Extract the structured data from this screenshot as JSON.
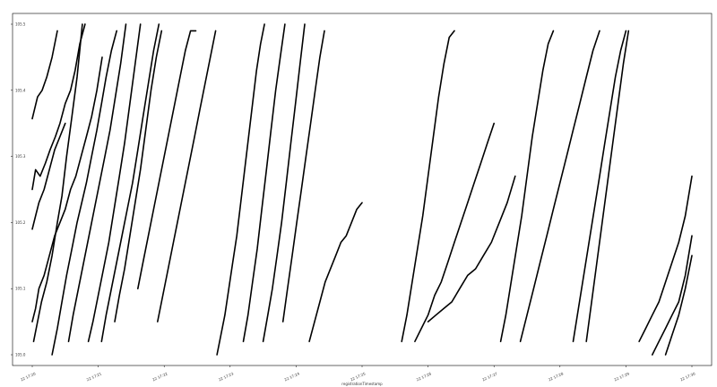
{
  "chart_data": {
    "type": "line",
    "title": "",
    "xlabel": "registrationTimestamp",
    "ylabel": "",
    "grid": false,
    "legend": "none",
    "line_color": "#000000",
    "xlim": [
      0,
      10
    ],
    "ylim": [
      105.0,
      105.5
    ],
    "x_ticks": [
      {
        "x": 0,
        "label": "22 17:20"
      },
      {
        "x": 1,
        "label": "22 17:21"
      },
      {
        "x": 2,
        "label": "22 17:22"
      },
      {
        "x": 3,
        "label": "22 17:23"
      },
      {
        "x": 4,
        "label": "22 17:24"
      },
      {
        "x": 5,
        "label": "22 17:25"
      },
      {
        "x": 6,
        "label": "22 17:26"
      },
      {
        "x": 7,
        "label": "22 17:27"
      },
      {
        "x": 8,
        "label": "22 17:28"
      },
      {
        "x": 9,
        "label": "22 17:29"
      },
      {
        "x": 10,
        "label": "22 17:30"
      }
    ],
    "y_ticks": [
      {
        "y": 105.0,
        "label": "105.0"
      },
      {
        "y": 105.1,
        "label": "105.1"
      },
      {
        "y": 105.2,
        "label": "105.2"
      },
      {
        "y": 105.3,
        "label": "105.3"
      },
      {
        "y": 105.4,
        "label": "105.4"
      },
      {
        "y": 105.5,
        "label": "105.5"
      }
    ],
    "series": [
      {
        "x": [
          0.0,
          0.08,
          0.15,
          0.22,
          0.3,
          0.38
        ],
        "y": [
          105.357,
          105.39,
          105.4,
          105.42,
          105.45,
          105.49
        ]
      },
      {
        "x": [
          0.0,
          0.05,
          0.12,
          0.2,
          0.27,
          0.35,
          0.42,
          0.5,
          0.58,
          0.65,
          0.72,
          0.8
        ],
        "y": [
          105.25,
          105.28,
          105.27,
          105.29,
          105.31,
          105.33,
          105.35,
          105.38,
          105.4,
          105.43,
          105.47,
          105.5
        ]
      },
      {
        "x": [
          0.0,
          0.05,
          0.1,
          0.18,
          0.26,
          0.34,
          0.42,
          0.5
        ],
        "y": [
          105.19,
          105.21,
          105.23,
          105.25,
          105.28,
          105.31,
          105.33,
          105.35
        ]
      },
      {
        "x": [
          0.0,
          0.05,
          0.1,
          0.18,
          0.26,
          0.34,
          0.42,
          0.5,
          0.58,
          0.66,
          0.74,
          0.82,
          0.9,
          0.98,
          1.06
        ],
        "y": [
          105.05,
          105.07,
          105.1,
          105.12,
          105.15,
          105.18,
          105.2,
          105.22,
          105.25,
          105.27,
          105.3,
          105.33,
          105.36,
          105.4,
          105.45
        ]
      },
      {
        "x": [
          0.02,
          0.08,
          0.14,
          0.22,
          0.3,
          0.38,
          0.45,
          0.52,
          0.6,
          0.68,
          0.76
        ],
        "y": [
          105.02,
          105.05,
          105.08,
          105.11,
          105.15,
          105.2,
          105.24,
          105.3,
          105.36,
          105.42,
          105.5
        ]
      },
      {
        "x": [
          0.3,
          0.38,
          0.45,
          0.52,
          0.6,
          0.68,
          0.75,
          0.82,
          0.9,
          0.98,
          1.05,
          1.12,
          1.2,
          1.28
        ],
        "y": [
          105.0,
          105.04,
          105.08,
          105.12,
          105.16,
          105.2,
          105.23,
          105.26,
          105.3,
          105.34,
          105.38,
          105.42,
          105.46,
          105.49
        ]
      },
      {
        "x": [
          0.55,
          0.62,
          0.7,
          0.78,
          0.86,
          0.94,
          1.02,
          1.1,
          1.18,
          1.26,
          1.34,
          1.42
        ],
        "y": [
          105.02,
          105.06,
          105.1,
          105.14,
          105.18,
          105.22,
          105.26,
          105.3,
          105.34,
          105.39,
          105.44,
          105.5
        ]
      },
      {
        "x": [
          0.85,
          0.92,
          1.0,
          1.08,
          1.16,
          1.24,
          1.32,
          1.4,
          1.48,
          1.56,
          1.64
        ],
        "y": [
          105.02,
          105.05,
          105.09,
          105.13,
          105.17,
          105.22,
          105.27,
          105.32,
          105.38,
          105.44,
          105.5
        ]
      },
      {
        "x": [
          1.05,
          1.12,
          1.2,
          1.28,
          1.36,
          1.44,
          1.52,
          1.6,
          1.68,
          1.76,
          1.84,
          1.92
        ],
        "y": [
          105.02,
          105.06,
          105.1,
          105.14,
          105.18,
          105.22,
          105.26,
          105.31,
          105.36,
          105.41,
          105.46,
          105.5
        ]
      },
      {
        "x": [
          1.25,
          1.32,
          1.4,
          1.48,
          1.56,
          1.64,
          1.72,
          1.8,
          1.88,
          1.96
        ],
        "y": [
          105.05,
          105.09,
          105.13,
          105.18,
          105.23,
          105.28,
          105.34,
          105.4,
          105.45,
          105.49
        ]
      },
      {
        "x": [
          1.6,
          1.68,
          1.76,
          1.84,
          1.92,
          2.0,
          2.08,
          2.16,
          2.24,
          2.32,
          2.4,
          2.48
        ],
        "y": [
          105.1,
          105.14,
          105.18,
          105.22,
          105.26,
          105.3,
          105.34,
          105.38,
          105.42,
          105.46,
          105.49,
          105.49
        ]
      },
      {
        "x": [
          1.9,
          1.98,
          2.06,
          2.14,
          2.22,
          2.3,
          2.38,
          2.46,
          2.54,
          2.62,
          2.7,
          2.78
        ],
        "y": [
          105.05,
          105.09,
          105.13,
          105.17,
          105.21,
          105.25,
          105.29,
          105.33,
          105.37,
          105.41,
          105.45,
          105.49
        ]
      },
      {
        "x": [
          2.8,
          2.86,
          2.92,
          2.98,
          3.04,
          3.1,
          3.16,
          3.22,
          3.28,
          3.34,
          3.4,
          3.46,
          3.52
        ],
        "y": [
          105.0,
          105.03,
          105.06,
          105.1,
          105.14,
          105.18,
          105.23,
          105.28,
          105.33,
          105.38,
          105.43,
          105.47,
          105.5
        ]
      },
      {
        "x": [
          3.2,
          3.27,
          3.34,
          3.41,
          3.48,
          3.55,
          3.62,
          3.69,
          3.76,
          3.83
        ],
        "y": [
          105.02,
          105.06,
          105.11,
          105.16,
          105.22,
          105.28,
          105.34,
          105.4,
          105.45,
          105.5
        ]
      },
      {
        "x": [
          3.5,
          3.57,
          3.64,
          3.71,
          3.78,
          3.85,
          3.92,
          3.99,
          4.06,
          4.13
        ],
        "y": [
          105.02,
          105.06,
          105.1,
          105.15,
          105.2,
          105.26,
          105.32,
          105.38,
          105.44,
          105.5
        ]
      },
      {
        "x": [
          3.8,
          3.87,
          3.94,
          4.01,
          4.08,
          4.15,
          4.22,
          4.29,
          4.36,
          4.43
        ],
        "y": [
          105.05,
          105.1,
          105.15,
          105.2,
          105.25,
          105.3,
          105.35,
          105.4,
          105.45,
          105.49
        ]
      },
      {
        "x": [
          4.2,
          4.28,
          4.36,
          4.44,
          4.52,
          4.6,
          4.68,
          4.76,
          4.84,
          4.92,
          5.0
        ],
        "y": [
          105.02,
          105.05,
          105.08,
          105.11,
          105.13,
          105.15,
          105.17,
          105.18,
          105.2,
          105.22,
          105.23
        ]
      },
      {
        "x": [
          5.6,
          5.68,
          5.76,
          5.84,
          5.92,
          6.0,
          6.08,
          6.16,
          6.24,
          6.32,
          6.4
        ],
        "y": [
          105.02,
          105.06,
          105.11,
          105.16,
          105.21,
          105.27,
          105.33,
          105.39,
          105.44,
          105.48,
          105.49
        ]
      },
      {
        "x": [
          5.8,
          5.9,
          6.0,
          6.1,
          6.2,
          6.3,
          6.4,
          6.5,
          6.6,
          6.7,
          6.8,
          6.9,
          7.0
        ],
        "y": [
          105.02,
          105.04,
          105.06,
          105.09,
          105.11,
          105.14,
          105.17,
          105.2,
          105.23,
          105.26,
          105.29,
          105.32,
          105.35
        ]
      },
      {
        "x": [
          6.0,
          6.12,
          6.24,
          6.36,
          6.48,
          6.6,
          6.72,
          6.84,
          6.96,
          7.08,
          7.2,
          7.32
        ],
        "y": [
          105.05,
          105.06,
          105.07,
          105.08,
          105.1,
          105.12,
          105.13,
          105.15,
          105.17,
          105.2,
          105.23,
          105.27
        ]
      },
      {
        "x": [
          7.1,
          7.18,
          7.26,
          7.34,
          7.42,
          7.5,
          7.58,
          7.66,
          7.74,
          7.82,
          7.9
        ],
        "y": [
          105.02,
          105.06,
          105.11,
          105.16,
          105.21,
          105.27,
          105.33,
          105.38,
          105.43,
          105.47,
          105.49
        ]
      },
      {
        "x": [
          7.4,
          7.5,
          7.6,
          7.7,
          7.8,
          7.9,
          8.0,
          8.1,
          8.2,
          8.3,
          8.4,
          8.5,
          8.6
        ],
        "y": [
          105.02,
          105.06,
          105.1,
          105.14,
          105.18,
          105.22,
          105.26,
          105.3,
          105.34,
          105.38,
          105.42,
          105.46,
          105.49
        ]
      },
      {
        "x": [
          8.2,
          8.28,
          8.36,
          8.44,
          8.52,
          8.6,
          8.68,
          8.76,
          8.84,
          8.92,
          9.0
        ],
        "y": [
          105.02,
          105.07,
          105.12,
          105.17,
          105.22,
          105.27,
          105.32,
          105.37,
          105.42,
          105.46,
          105.49
        ]
      },
      {
        "x": [
          8.4,
          8.48,
          8.56,
          8.64,
          8.72,
          8.8,
          8.88,
          8.96,
          9.04
        ],
        "y": [
          105.02,
          105.08,
          105.14,
          105.2,
          105.26,
          105.32,
          105.38,
          105.44,
          105.49
        ]
      },
      {
        "x": [
          9.2,
          9.3,
          9.4,
          9.5,
          9.6,
          9.7,
          9.8,
          9.9,
          10.0
        ],
        "y": [
          105.02,
          105.04,
          105.06,
          105.08,
          105.11,
          105.14,
          105.17,
          105.21,
          105.27
        ]
      },
      {
        "x": [
          9.4,
          9.5,
          9.6,
          9.7,
          9.8,
          9.9,
          10.0
        ],
        "y": [
          105.0,
          105.02,
          105.04,
          105.06,
          105.08,
          105.12,
          105.18
        ]
      },
      {
        "x": [
          9.6,
          9.7,
          9.8,
          9.9,
          10.0
        ],
        "y": [
          105.0,
          105.03,
          105.06,
          105.1,
          105.15
        ]
      }
    ]
  }
}
